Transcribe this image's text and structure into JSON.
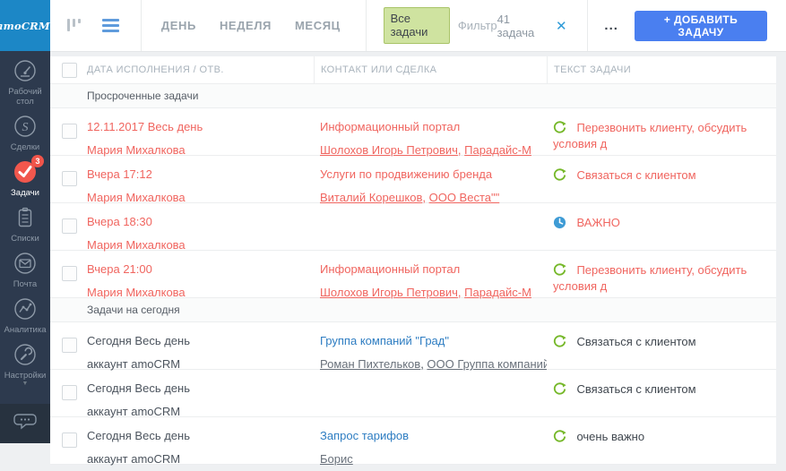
{
  "colors": {
    "sidebar": "#2d3a4e",
    "logo": "#1c87c6",
    "badge": "#f0544a",
    "red": "#f0655f",
    "bluelink": "#2e7dc2",
    "green": "#76b82a",
    "clockblue": "#3e9bd5",
    "btn": "#4a7ff0",
    "chipbg": "#cfe3a0",
    "chipbr": "#a9c468"
  },
  "sidebar": {
    "logo": "amoCRM.",
    "items": [
      {
        "id": "dashboard",
        "label": "Рабочий стол",
        "icon": "dashboard"
      },
      {
        "id": "deals",
        "label": "Сделки",
        "icon": "deals"
      },
      {
        "id": "tasks",
        "label": "Задачи",
        "icon": "tasks",
        "active": true,
        "badge": "3"
      },
      {
        "id": "lists",
        "label": "Списки",
        "icon": "lists"
      },
      {
        "id": "mail",
        "label": "Почта",
        "icon": "mail"
      },
      {
        "id": "analytics",
        "label": "Аналитика",
        "icon": "analytics"
      },
      {
        "id": "settings",
        "label": "Настройки",
        "icon": "settings",
        "caret": true
      }
    ]
  },
  "topbar": {
    "view_tabs": [
      "ДЕНЬ",
      "НЕДЕЛЯ",
      "МЕСЯЦ"
    ],
    "filter_chip": "Все задачи",
    "filter_label": "Фильтр",
    "count": "41 задача",
    "more": "...",
    "add_task": "+ ДОБАВИТЬ ЗАДАЧУ"
  },
  "table": {
    "columns": [
      "ДАТА ИСПОЛНЕНИЯ / ОТВ.",
      "КОНТАКТ ИЛИ СДЕЛКА",
      "ТЕКСТ ЗАДАЧИ"
    ],
    "rows": [
      {
        "type": "section",
        "label": "Просроченные задачи"
      },
      {
        "type": "task",
        "state": "overdue",
        "date": "12.11.2017 Весь день",
        "responsible": "Мария Михалкова",
        "deal": "Информационный портал",
        "contacts": [
          "Шолохов Игорь Петрович",
          "Парадайс-М"
        ],
        "task_icon": "followup",
        "task_text": "Перезвонить клиенту, обсудить условия д"
      },
      {
        "type": "task",
        "state": "overdue",
        "date": "Вчера 17:12",
        "responsible": "Мария Михалкова",
        "deal": "Услуги по продвижению бренда",
        "contacts": [
          "Виталий Корешков",
          "ООО Веста\"\""
        ],
        "task_icon": "followup",
        "task_text": "Связаться с клиентом"
      },
      {
        "type": "task",
        "state": "overdue",
        "date": "Вчера 18:30",
        "responsible": "Мария Михалкова",
        "deal": "",
        "contacts": [],
        "task_icon": "clock",
        "task_text": "ВАЖНО"
      },
      {
        "type": "task",
        "state": "overdue",
        "date": "Вчера 21:00",
        "responsible": "Мария Михалкова",
        "deal": "Информационный портал",
        "contacts": [
          "Шолохов Игорь Петрович",
          "Парадайс-М"
        ],
        "task_icon": "followup",
        "task_text": "Перезвонить клиенту, обсудить условия д"
      },
      {
        "type": "section",
        "label": "Задачи на сегодня"
      },
      {
        "type": "task",
        "state": "today",
        "date": "Сегодня Весь день",
        "responsible": "аккаунт amoCRM",
        "deal": "Группа компаний \"Град\"",
        "contacts": [
          "Роман Пихтельков",
          "ООО Группа компаний \"Гра"
        ],
        "task_icon": "followup",
        "task_text": "Связаться с клиентом"
      },
      {
        "type": "task",
        "state": "today",
        "date": "Сегодня Весь день",
        "responsible": "аккаунт amoCRM",
        "deal": "",
        "contacts": [],
        "task_icon": "followup",
        "task_text": "Связаться с клиентом"
      },
      {
        "type": "task",
        "state": "today",
        "date": "Сегодня Весь день",
        "responsible": "аккаунт amoCRM",
        "deal": "Запрос тарифов",
        "contacts": [
          "Борис"
        ],
        "task_icon": "followup",
        "task_text": "очень важно"
      }
    ]
  }
}
